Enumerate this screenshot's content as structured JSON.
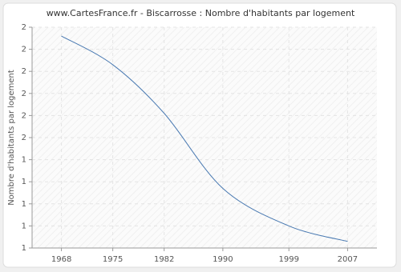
{
  "chart_data": {
    "type": "line",
    "title": "www.CartesFrance.fr - Biscarrosse : Nombre d'habitants par logement",
    "y_label": "Nombre d'habitants par logement",
    "x": [
      1968,
      1975,
      1982,
      1990,
      1999,
      2007
    ],
    "series": [
      {
        "name": "Biscarrosse",
        "color": "#4a7ab2",
        "values": [
          1.96,
          1.83,
          1.61,
          1.27,
          1.1,
          1.03
        ]
      }
    ],
    "xlim": [
      1964,
      2011
    ],
    "xticks": [
      1968,
      1975,
      1982,
      1990,
      1999,
      2007
    ],
    "ylim": [
      1.0,
      2.0
    ],
    "yticks": [
      {
        "value": 1.0,
        "label": "1"
      },
      {
        "value": 1.1,
        "label": "1"
      },
      {
        "value": 1.2,
        "label": "1"
      },
      {
        "value": 1.3,
        "label": "1"
      },
      {
        "value": 1.4,
        "label": "1"
      },
      {
        "value": 1.5,
        "label": "2"
      },
      {
        "value": 1.6,
        "label": "2"
      },
      {
        "value": 1.7,
        "label": "2"
      },
      {
        "value": 1.8,
        "label": "2"
      },
      {
        "value": 1.9,
        "label": "2"
      },
      {
        "value": 2.0,
        "label": "2"
      }
    ],
    "grid": true
  }
}
